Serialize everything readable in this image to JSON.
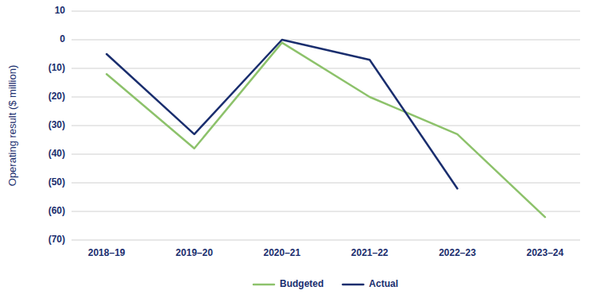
{
  "chart_data": {
    "type": "line",
    "y_label": "Operating result ($ million)",
    "categories": [
      "2018–19",
      "2019–20",
      "2020–21",
      "2021–22",
      "2022–23",
      "2023–24"
    ],
    "series": [
      {
        "name": "Budgeted",
        "color": "#8dc26b",
        "values": [
          -12,
          -38,
          -1,
          -20,
          -33,
          -62
        ]
      },
      {
        "name": "Actual",
        "color": "#1a2e6e",
        "values": [
          -5,
          -33,
          0,
          -7,
          -52,
          null
        ]
      }
    ],
    "ylim": [
      -70,
      10
    ],
    "yticks": [
      10,
      0,
      {
        "value": -10,
        "label": "(10)"
      },
      {
        "value": -20,
        "label": "(20)"
      },
      {
        "value": -30,
        "label": "(30)"
      },
      {
        "value": -40,
        "label": "(40)"
      },
      {
        "value": -50,
        "label": "(50)"
      },
      {
        "value": -60,
        "label": "(60)"
      },
      {
        "value": -70,
        "label": "(70)"
      }
    ],
    "grid": true,
    "legend": "bottom"
  }
}
